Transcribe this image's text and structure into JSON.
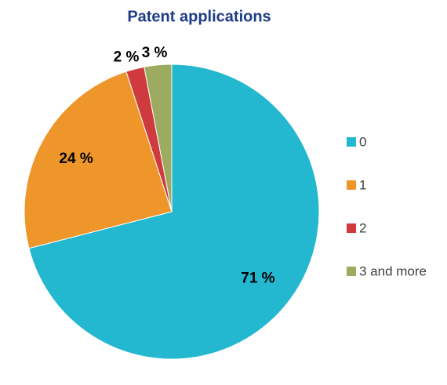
{
  "chart_data": {
    "type": "pie",
    "title": "Patent applications",
    "categories": [
      "0",
      "1",
      "2",
      "3 and more"
    ],
    "values": [
      71,
      24,
      2,
      3
    ],
    "value_labels": [
      "71 %",
      "24 %",
      "2 %",
      "3 %"
    ],
    "colors": [
      "#23b8d0",
      "#ef962b",
      "#cf3a3e",
      "#9cab5f"
    ],
    "legend": "right"
  }
}
